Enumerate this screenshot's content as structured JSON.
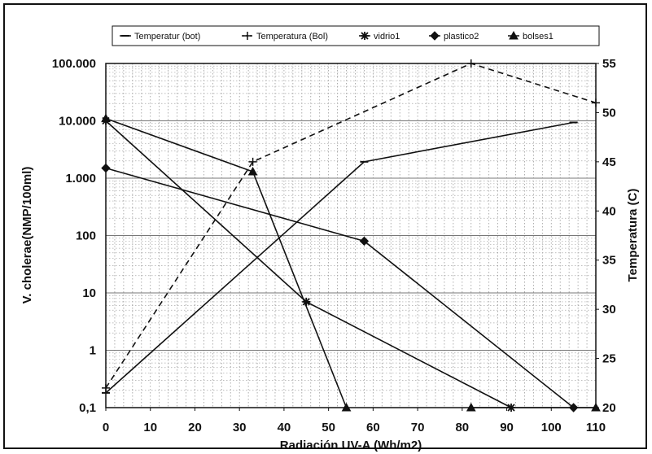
{
  "chart_data": {
    "type": "line",
    "title": "",
    "xlabel": "Radiación UV-A (Wh/m2)",
    "ylabel": "V. cholerae(NMP/100ml)",
    "y2label": "Temperatura (C)",
    "xlim": [
      0,
      110
    ],
    "ylim": [
      0.1,
      100000
    ],
    "y_scale": "log",
    "y2lim": [
      20,
      55
    ],
    "grid": true,
    "legend_position": "top",
    "x_ticks": [
      0,
      10,
      20,
      30,
      40,
      50,
      60,
      70,
      80,
      90,
      100,
      110
    ],
    "y_ticks": [
      {
        "value": 0.1,
        "label": "0,1"
      },
      {
        "value": 1,
        "label": "1"
      },
      {
        "value": 10,
        "label": "10"
      },
      {
        "value": 100,
        "label": "100"
      },
      {
        "value": 1000,
        "label": "1.000"
      },
      {
        "value": 10000,
        "label": "10.000"
      },
      {
        "value": 100000,
        "label": "100.000"
      }
    ],
    "y2_ticks": [
      20,
      25,
      30,
      35,
      40,
      45,
      50,
      55
    ],
    "series": [
      {
        "name": "Temperatur (bot)",
        "axis": "right",
        "dash": false,
        "marker": "dash",
        "x": [
          0,
          58,
          105
        ],
        "y": [
          21.5,
          45,
          49
        ]
      },
      {
        "name": "Temperatura (Bol)",
        "axis": "right",
        "dash": true,
        "marker": "plus",
        "x": [
          0,
          33,
          82,
          110
        ],
        "y": [
          22,
          45,
          55,
          51
        ]
      },
      {
        "name": "vidrio1",
        "axis": "left",
        "dash": false,
        "marker": "star",
        "x": [
          0,
          45,
          91
        ],
        "y": [
          10000,
          7,
          0.1
        ]
      },
      {
        "name": "plastico2",
        "axis": "left",
        "dash": false,
        "marker": "diamond",
        "x": [
          0,
          58,
          105
        ],
        "y": [
          1500,
          80,
          0.1
        ]
      },
      {
        "name": "bolses1",
        "axis": "left",
        "dash": false,
        "marker": "triangle",
        "x": [
          0,
          33,
          54
        ],
        "y": [
          11000,
          1300,
          0.1
        ]
      },
      {
        "name": "",
        "axis": "left",
        "dash": false,
        "marker": "triangle",
        "x": [
          82,
          110
        ],
        "y": [
          0.1,
          0.1
        ]
      }
    ]
  }
}
